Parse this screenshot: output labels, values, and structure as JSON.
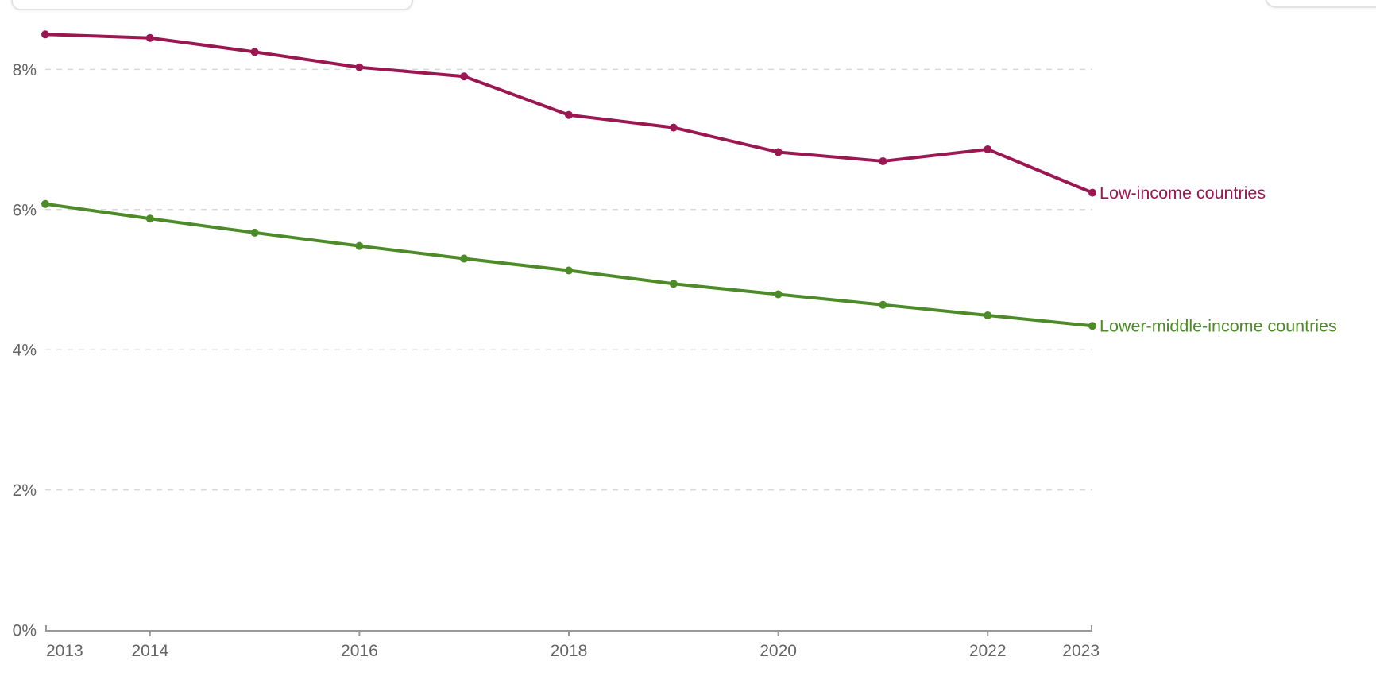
{
  "chart_data": {
    "type": "line",
    "x": [
      2013,
      2014,
      2015,
      2016,
      2017,
      2018,
      2019,
      2020,
      2021,
      2022,
      2023
    ],
    "series": [
      {
        "name": "Low-income countries",
        "color": "#9a1752",
        "values": [
          8.5,
          8.45,
          8.25,
          8.03,
          7.9,
          7.35,
          7.17,
          6.82,
          6.69,
          6.86,
          6.24
        ]
      },
      {
        "name": "Lower-middle-income countries",
        "color": "#4c8b27",
        "values": [
          6.08,
          5.87,
          5.67,
          5.48,
          5.3,
          5.13,
          4.94,
          4.79,
          4.64,
          4.49,
          4.34
        ]
      }
    ],
    "title": "",
    "xlabel": "",
    "ylabel": "",
    "ylim": [
      0,
      8.8
    ],
    "yticks": [
      {
        "value": 0,
        "label": "0%"
      },
      {
        "value": 2,
        "label": "2%"
      },
      {
        "value": 4,
        "label": "4%"
      },
      {
        "value": 6,
        "label": "6%"
      },
      {
        "value": 8,
        "label": "8%"
      }
    ],
    "xticks": [
      {
        "value": 2013,
        "label": "2013"
      },
      {
        "value": 2014,
        "label": "2014"
      },
      {
        "value": 2016,
        "label": "2016"
      },
      {
        "value": 2018,
        "label": "2018"
      },
      {
        "value": 2020,
        "label": "2020"
      },
      {
        "value": 2022,
        "label": "2022"
      },
      {
        "value": 2023,
        "label": "2023"
      }
    ],
    "grid": "horizontal-dashed",
    "legend_position": "end-of-line-labels"
  },
  "colors": {
    "axis_text": "#646464",
    "axis_line": "#999999",
    "gridline": "#d9d9d9",
    "background": "#ffffff",
    "panel_border": "#e2e2e2"
  }
}
